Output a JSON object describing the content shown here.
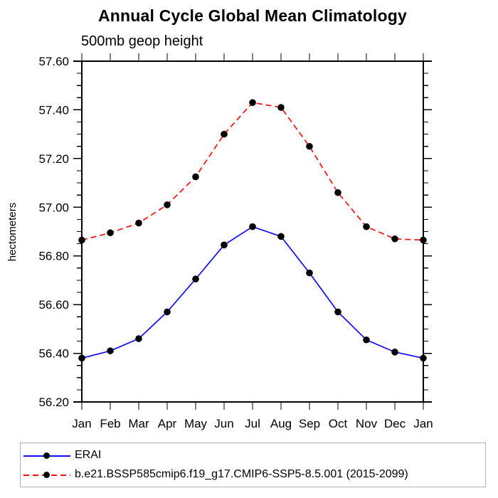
{
  "colors": {
    "erai_line": "#0d0dff",
    "model_line": "#ff0d0d",
    "marker": "#000000",
    "axis": "#000000",
    "legend_border": "#b3b3b3",
    "background": "#ffffff"
  },
  "chart_data": {
    "type": "line",
    "title": "Annual Cycle Global Mean Climatology",
    "subtitle": "500mb geop height",
    "xlabel": "",
    "ylabel": "hectometers",
    "categories": [
      "Jan",
      "Feb",
      "Mar",
      "Apr",
      "May",
      "Jun",
      "Jul",
      "Aug",
      "Sep",
      "Oct",
      "Nov",
      "Dec",
      "Jan"
    ],
    "ylim": [
      56.2,
      57.6
    ],
    "y_major_step": 0.2,
    "y_minor_step": 0.05,
    "grid": false,
    "legend_position": "bottom-left-box",
    "series": [
      {
        "name": "ERAI",
        "color": "#0d0dff",
        "style": "solid",
        "marker": "filled-circle",
        "marker_color": "#000000",
        "values": [
          56.38,
          56.41,
          56.46,
          56.57,
          56.705,
          56.845,
          56.92,
          56.88,
          56.73,
          56.57,
          56.455,
          56.405,
          56.38
        ]
      },
      {
        "name": "b.e21.BSSP585cmip6.f19_g17.CMIP6-SSP5-8.5.001 (2015-2099)",
        "color": "#ff0d0d",
        "style": "dashed",
        "marker": "filled-circle",
        "marker_color": "#000000",
        "values": [
          56.865,
          56.895,
          56.935,
          57.01,
          57.125,
          57.3,
          57.43,
          57.41,
          57.25,
          57.06,
          56.92,
          56.87,
          56.865
        ]
      }
    ]
  }
}
